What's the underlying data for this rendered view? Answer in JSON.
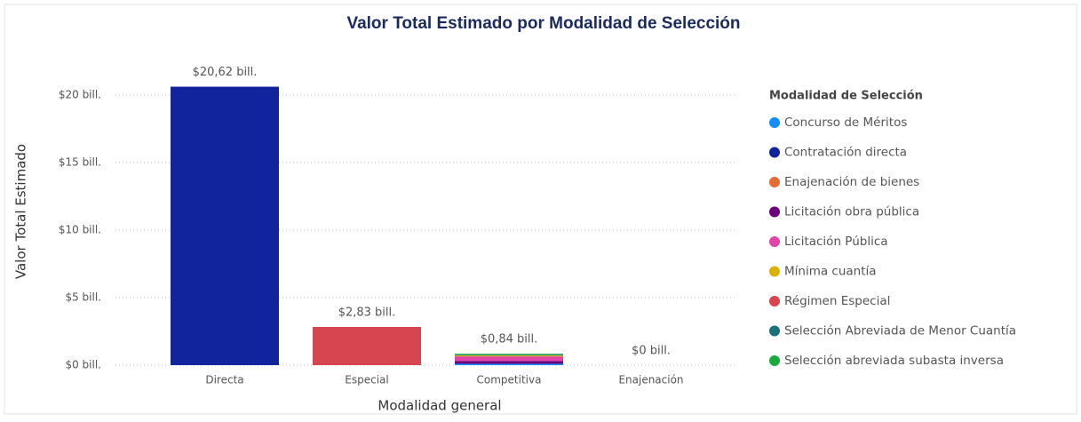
{
  "chart_data": {
    "type": "stacked_bar",
    "title": "Valor Total Estimado por Modalidad de Selección",
    "x_label": "Modalidad general",
    "y_label": "Valor Total Estimado",
    "legend_title": "Modalidad de Selección",
    "categories": [
      "Directa",
      "Especial",
      "Competitiva",
      "Enajenación"
    ],
    "series": [
      {
        "name": "Concurso de Méritos",
        "color": "#118DFF",
        "values": [
          null,
          null,
          0.1,
          null
        ]
      },
      {
        "name": "Contratación directa",
        "color": "#12239E",
        "values": [
          20.62,
          null,
          null,
          null
        ]
      },
      {
        "name": "Enajenación de bienes",
        "color": "#E66C37",
        "values": [
          null,
          null,
          null,
          0
        ]
      },
      {
        "name": "Licitación obra pública",
        "color": "#6B007B",
        "values": [
          null,
          null,
          0.2,
          null
        ]
      },
      {
        "name": "Licitación Pública",
        "color": "#E044A7",
        "values": [
          null,
          null,
          0.35,
          null
        ]
      },
      {
        "name": "Mínima cuantía",
        "color": "#D9B300",
        "values": [
          null,
          null,
          0.07,
          null
        ]
      },
      {
        "name": "Régimen Especial",
        "color": "#D64550",
        "values": [
          null,
          2.83,
          null,
          null
        ]
      },
      {
        "name": "Selección Abreviada de Menor Cuantía",
        "color": "#197278",
        "values": [
          null,
          null,
          0.05,
          null
        ]
      },
      {
        "name": "Selección abreviada subasta inversa",
        "color": "#1AAB40",
        "values": [
          null,
          null,
          0.07,
          null
        ]
      }
    ],
    "totals": [
      20.62,
      2.83,
      0.84,
      0
    ],
    "total_labels": [
      "$20,62 bill.",
      "$2,83 bill.",
      "$0,84 bill.",
      "$0 bill."
    ],
    "ylim": [
      0,
      21
    ],
    "yticks": [
      {
        "value": 0,
        "label": "$0 bill."
      },
      {
        "value": 5,
        "label": "$5 bill."
      },
      {
        "value": 10,
        "label": "$10 bill."
      },
      {
        "value": 15,
        "label": "$15 bill."
      },
      {
        "value": 20,
        "label": "$20 bill."
      }
    ],
    "grid": true,
    "legend": "right"
  }
}
